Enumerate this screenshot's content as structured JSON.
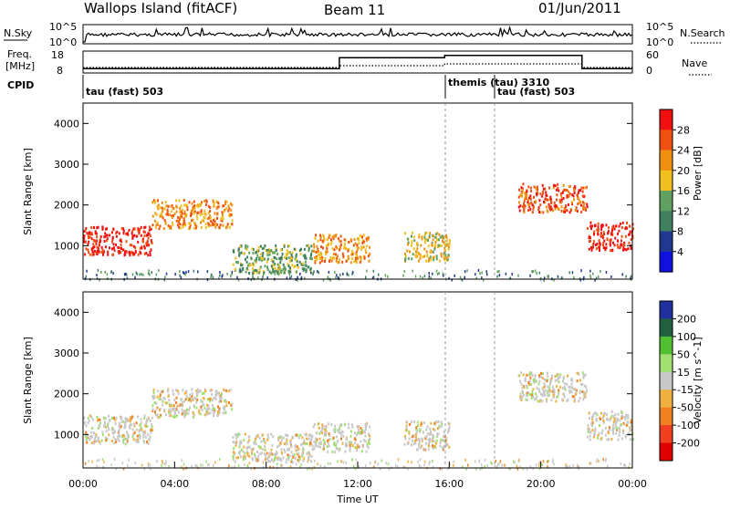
{
  "header": {
    "title_left": "Wallops Island (fitACF)",
    "title_center": "Beam 11",
    "title_right": "01/Jun/2011"
  },
  "noise_panel": {
    "left_label": "N.Sky",
    "right_label": "N.Search",
    "left_ticks": [
      "10^5",
      "10^0"
    ],
    "right_ticks": [
      "10^5",
      "10^0"
    ]
  },
  "freq_panel": {
    "label_line1": "Freq.",
    "label_line2": "[MHz]",
    "left_ticks": [
      "18",
      "8"
    ],
    "right_ticks": [
      "60",
      "0"
    ],
    "right_label": "Nave"
  },
  "cpid_panel": {
    "label": "CPID",
    "segments": [
      "tau (fast) 503",
      "themis (tau) 3310",
      "tau (fast) 503"
    ]
  },
  "power_panel": {
    "ylabel": "Slant Range [km]",
    "colorbar_label": "Power [dB]",
    "colorbar_ticks": [
      "28",
      "24",
      "20",
      "16",
      "12",
      "8",
      "4"
    ],
    "colors": [
      "#f01010",
      "#f05010",
      "#f09010",
      "#f0c020",
      "#60a060",
      "#408060",
      "#203890",
      "#1010e0"
    ]
  },
  "velocity_panel": {
    "ylabel": "Slant Range [km]",
    "colorbar_label": "Velocity [m s^-1]",
    "colorbar_ticks": [
      "200",
      "100",
      "50",
      "15",
      "-15",
      "-50",
      "-100",
      "-200"
    ],
    "colors": [
      "#2030a0",
      "#206040",
      "#50c030",
      "#a0e070",
      "#c8c8c8",
      "#f0b040",
      "#f08020",
      "#f04020",
      "#e00000"
    ]
  },
  "xaxis": {
    "label": "Time UT",
    "ticks": [
      "00:00",
      "04:00",
      "08:00",
      "12:00",
      "16:00",
      "20:00",
      "00:00"
    ]
  },
  "chart_data": {
    "type": "heatmap",
    "title": "Wallops Island (fitACF)",
    "xlabel": "Time UT",
    "ylabel": "Slant Range [km]",
    "xlim": [
      0,
      24
    ],
    "ylim": [
      180,
      4500
    ],
    "y_ticks": [
      1000,
      2000,
      3000,
      4000
    ],
    "grid": false,
    "freq_steps_mhz": [
      {
        "from": 0,
        "to": 11.2,
        "value": 10
      },
      {
        "from": 11.2,
        "to": 15.8,
        "value": 15
      },
      {
        "from": 15.8,
        "to": 21.8,
        "value": 16
      },
      {
        "from": 21.8,
        "to": 24,
        "value": 10
      }
    ],
    "cpid_changes_hours": [
      0,
      15.8,
      18.0
    ],
    "power_bands": [
      {
        "from": 0,
        "to": 3,
        "range_km": 1150,
        "power_db": 28
      },
      {
        "from": 3,
        "to": 6.5,
        "range_km": 1800,
        "power_db": 20
      },
      {
        "from": 6.5,
        "to": 10,
        "range_km": 700,
        "power_db": 12
      },
      {
        "from": 10,
        "to": 12.5,
        "range_km": 950,
        "power_db": 20
      },
      {
        "from": 14,
        "to": 16,
        "range_km": 1000,
        "power_db": 16
      },
      {
        "from": 19,
        "to": 22,
        "range_km": 2200,
        "power_db": 24
      },
      {
        "from": 22,
        "to": 24,
        "range_km": 1250,
        "power_db": 28
      }
    ]
  }
}
